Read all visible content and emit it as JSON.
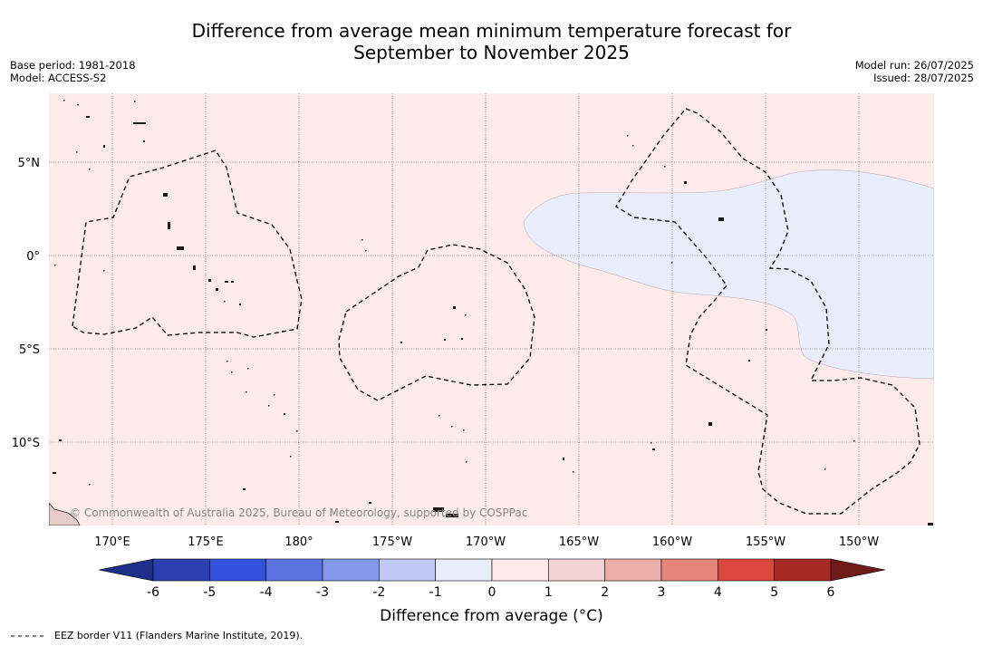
{
  "title_line1": "Difference from average mean minimum temperature forecast for",
  "title_line2": "September to November 2025",
  "base_period": "Base period: 1981-2018",
  "model": "Model: ACCESS-S2",
  "model_run": "Model run: 26/07/2025",
  "issued": "Issued: 28/07/2025",
  "copyright": "© Commonwealth of Australia 2025, Bureau of Meteorology, supported by COSPPac",
  "lat_labels": [
    "5°N",
    "0°",
    "5°S",
    "10°S"
  ],
  "lon_labels": [
    "170°E",
    "175°E",
    "180°",
    "175°W",
    "170°W",
    "165°W",
    "160°W",
    "155°W",
    "150°W"
  ],
  "colorbar": {
    "ticks": [
      "-6",
      "-5",
      "-4",
      "-3",
      "-2",
      "-1",
      "0",
      "1",
      "2",
      "3",
      "4",
      "5",
      "6"
    ],
    "colors": [
      "#1e2f8a",
      "#2a40b0",
      "#3452dc",
      "#5b73e0",
      "#8497e8",
      "#c0c9f2",
      "#e9ecfb",
      "#fcebea",
      "#f3d3d3",
      "#ebaea8",
      "#e5857c",
      "#d9473d",
      "#a82a24",
      "#6e1a18"
    ],
    "label": "Difference from average (°C)"
  },
  "legend_text": "EEZ border V11 (Flanders Marine Institute, 2019).",
  "colors": {
    "background_anomaly": "#fcebea",
    "cool_anomaly": "#e9ecfb"
  }
}
